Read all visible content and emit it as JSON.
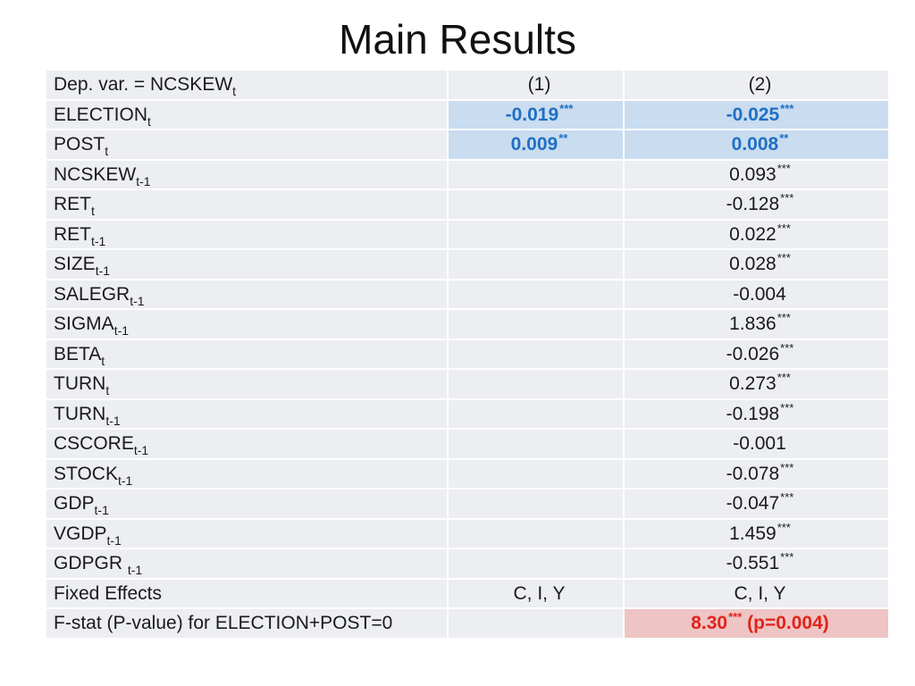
{
  "title": "Main Results",
  "table": {
    "header": {
      "label_main": "Dep. var. = NCSKEW",
      "label_sub": "t",
      "col1": "(1)",
      "col2": "(2)"
    },
    "rows": [
      {
        "var": "ELECTION",
        "sub": "t",
        "c1": "-0.019",
        "c1_stars": "***",
        "c2": "-0.025",
        "c2_stars": "***"
      },
      {
        "var": "POST",
        "sub": "t",
        "c1": "0.009",
        "c1_stars": "**",
        "c2": "0.008",
        "c2_stars": "**"
      },
      {
        "var": "NCSKEW",
        "sub": "t-1",
        "c2": "0.093",
        "c2_stars": "***"
      },
      {
        "var": "RET",
        "sub": "t",
        "c2": "-0.128",
        "c2_stars": "***"
      },
      {
        "var": "RET",
        "sub": "t-1",
        "c2": "0.022",
        "c2_stars": "***"
      },
      {
        "var": "SIZE",
        "sub": "t-1",
        "c2": "0.028",
        "c2_stars": "***"
      },
      {
        "var": "SALEGR",
        "sub": "t-1",
        "c2": "-0.004",
        "c2_stars": ""
      },
      {
        "var": "SIGMA",
        "sub": "t-1",
        "c2": "1.836",
        "c2_stars": "***"
      },
      {
        "var": "BETA",
        "sub": "t",
        "c2": "-0.026",
        "c2_stars": "***"
      },
      {
        "var": "TURN",
        "sub": "t",
        "c2": "0.273",
        "c2_stars": "***"
      },
      {
        "var": "TURN",
        "sub": "t-1",
        "c2": "-0.198",
        "c2_stars": "***"
      },
      {
        "var": "CSCORE",
        "sub": "t-1",
        "c2": "-0.001",
        "c2_stars": ""
      },
      {
        "var": "STOCK",
        "sub": "t-1",
        "c2": "-0.078",
        "c2_stars": "***"
      },
      {
        "var": "GDP",
        "sub": "t-1",
        "c2": "-0.047",
        "c2_stars": "***"
      },
      {
        "var": "VGDP",
        "sub": "t-1",
        "c2": "1.459",
        "c2_stars": "***"
      },
      {
        "var": "GDPGR ",
        "sub": "t-1",
        "c2": "-0.551",
        "c2_stars": "***"
      }
    ],
    "fixed_effects": {
      "label": "Fixed Effects",
      "c1": "C, I, Y",
      "c2": "C, I, Y"
    },
    "fstat": {
      "label": "F-stat (P-value) for ELECTION+POST=0",
      "value": "8.30",
      "stars": "***",
      "pvalue": " (p=0.004)"
    },
    "colors": {
      "highlight_blue": "#c9dcf0",
      "highlight_red": "#eec4c4",
      "text_blue": "#1f6fc5",
      "text_red": "#e0241b"
    }
  }
}
